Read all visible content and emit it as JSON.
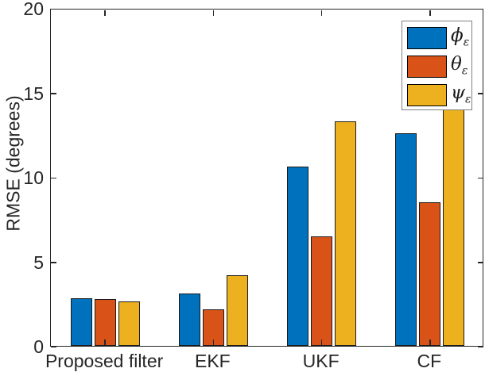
{
  "chart_data": {
    "type": "bar",
    "title": "",
    "categories": [
      "Proposed filter",
      "EKF",
      "UKF",
      "CF"
    ],
    "series": [
      {
        "name": "phi-epsilon",
        "label_symbol": "ϕ",
        "label_subscript": "ε",
        "color": "#0072BD",
        "values": [
          2.8,
          3.1,
          10.6,
          12.6
        ]
      },
      {
        "name": "theta-epsilon",
        "label_symbol": "θ",
        "label_subscript": "ε",
        "color": "#D95319",
        "values": [
          2.75,
          2.15,
          6.5,
          8.5
        ]
      },
      {
        "name": "psi-epsilon",
        "label_symbol": "ψ",
        "label_subscript": "ε",
        "color": "#EDB120",
        "values": [
          2.65,
          4.2,
          13.3,
          14.2
        ]
      }
    ],
    "xlabel": "",
    "ylabel": "RMSE (degrees)",
    "ylim": [
      0,
      20
    ],
    "yticks": [
      0,
      5,
      10,
      15,
      20
    ],
    "grid": false,
    "legend_position": "top-right"
  },
  "colors": {
    "axis": "#262626",
    "bar_edge": "#1a1a1a",
    "legend_border": "#808080",
    "background": "#ffffff"
  }
}
